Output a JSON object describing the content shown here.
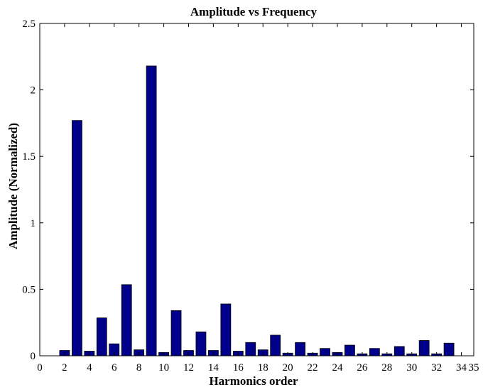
{
  "chart_data": {
    "type": "bar",
    "title": "Amplitude vs Frequency",
    "xlabel": "Harmonics order",
    "ylabel": "Amplitude (Normalized)",
    "xlim": [
      0,
      35
    ],
    "ylim": [
      0,
      2.5
    ],
    "x_ticks": [
      0,
      2,
      4,
      6,
      8,
      10,
      12,
      14,
      16,
      18,
      20,
      22,
      24,
      26,
      28,
      30,
      32,
      34,
      35
    ],
    "y_ticks": [
      0,
      0.5,
      1,
      1.5,
      2,
      2.5
    ],
    "x": [
      2,
      3,
      4,
      5,
      6,
      7,
      8,
      9,
      10,
      11,
      12,
      13,
      14,
      15,
      16,
      17,
      18,
      19,
      20,
      21,
      22,
      23,
      24,
      25,
      26,
      27,
      28,
      29,
      30,
      31,
      32,
      33
    ],
    "values": [
      0.04,
      1.77,
      0.035,
      0.285,
      0.09,
      0.535,
      0.045,
      2.18,
      0.025,
      0.34,
      0.04,
      0.18,
      0.04,
      0.39,
      0.035,
      0.1,
      0.045,
      0.155,
      0.02,
      0.1,
      0.02,
      0.055,
      0.025,
      0.08,
      0.015,
      0.055,
      0.015,
      0.07,
      0.015,
      0.115,
      0.015,
      0.095
    ],
    "bar_color": "#00008b",
    "grid": false,
    "legend": "none"
  }
}
